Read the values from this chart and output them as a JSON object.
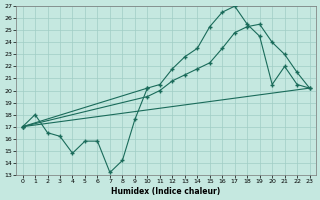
{
  "xlabel": "Humidex (Indice chaleur)",
  "xlim": [
    -0.5,
    23.5
  ],
  "ylim": [
    13,
    27
  ],
  "bg_color": "#c5e8e0",
  "grid_color": "#a0cec5",
  "line_color": "#1a6b5a",
  "yticks": [
    13,
    14,
    15,
    16,
    17,
    18,
    19,
    20,
    21,
    22,
    23,
    24,
    25,
    26,
    27
  ],
  "xticks": [
    0,
    1,
    2,
    3,
    4,
    5,
    6,
    7,
    8,
    9,
    10,
    11,
    12,
    13,
    14,
    15,
    16,
    17,
    18,
    19,
    20,
    21,
    22,
    23
  ],
  "curve1_x": [
    0,
    10,
    11,
    12,
    13,
    14,
    15,
    16,
    17,
    18,
    19,
    20,
    21,
    22,
    23
  ],
  "curve1_y": [
    17.0,
    20.2,
    20.5,
    21.8,
    22.8,
    23.5,
    25.3,
    26.5,
    27.0,
    25.5,
    24.5,
    20.5,
    22.0,
    20.5,
    20.2
  ],
  "curve2_x": [
    0,
    10,
    11,
    12,
    13,
    14,
    15,
    16,
    17,
    18,
    19,
    20,
    21,
    22,
    23
  ],
  "curve2_y": [
    17.0,
    19.5,
    20.0,
    20.8,
    21.3,
    21.8,
    22.3,
    23.5,
    24.8,
    25.3,
    25.5,
    24.0,
    23.0,
    21.5,
    20.2
  ],
  "line3_x": [
    0,
    23
  ],
  "line3_y": [
    17.0,
    20.2
  ],
  "zigzag_x": [
    0,
    1,
    2,
    3,
    4,
    5,
    6,
    7,
    8,
    9,
    10
  ],
  "zigzag_y": [
    17.0,
    18.0,
    16.5,
    16.2,
    14.8,
    15.8,
    15.8,
    13.2,
    14.2,
    17.6,
    20.2
  ]
}
